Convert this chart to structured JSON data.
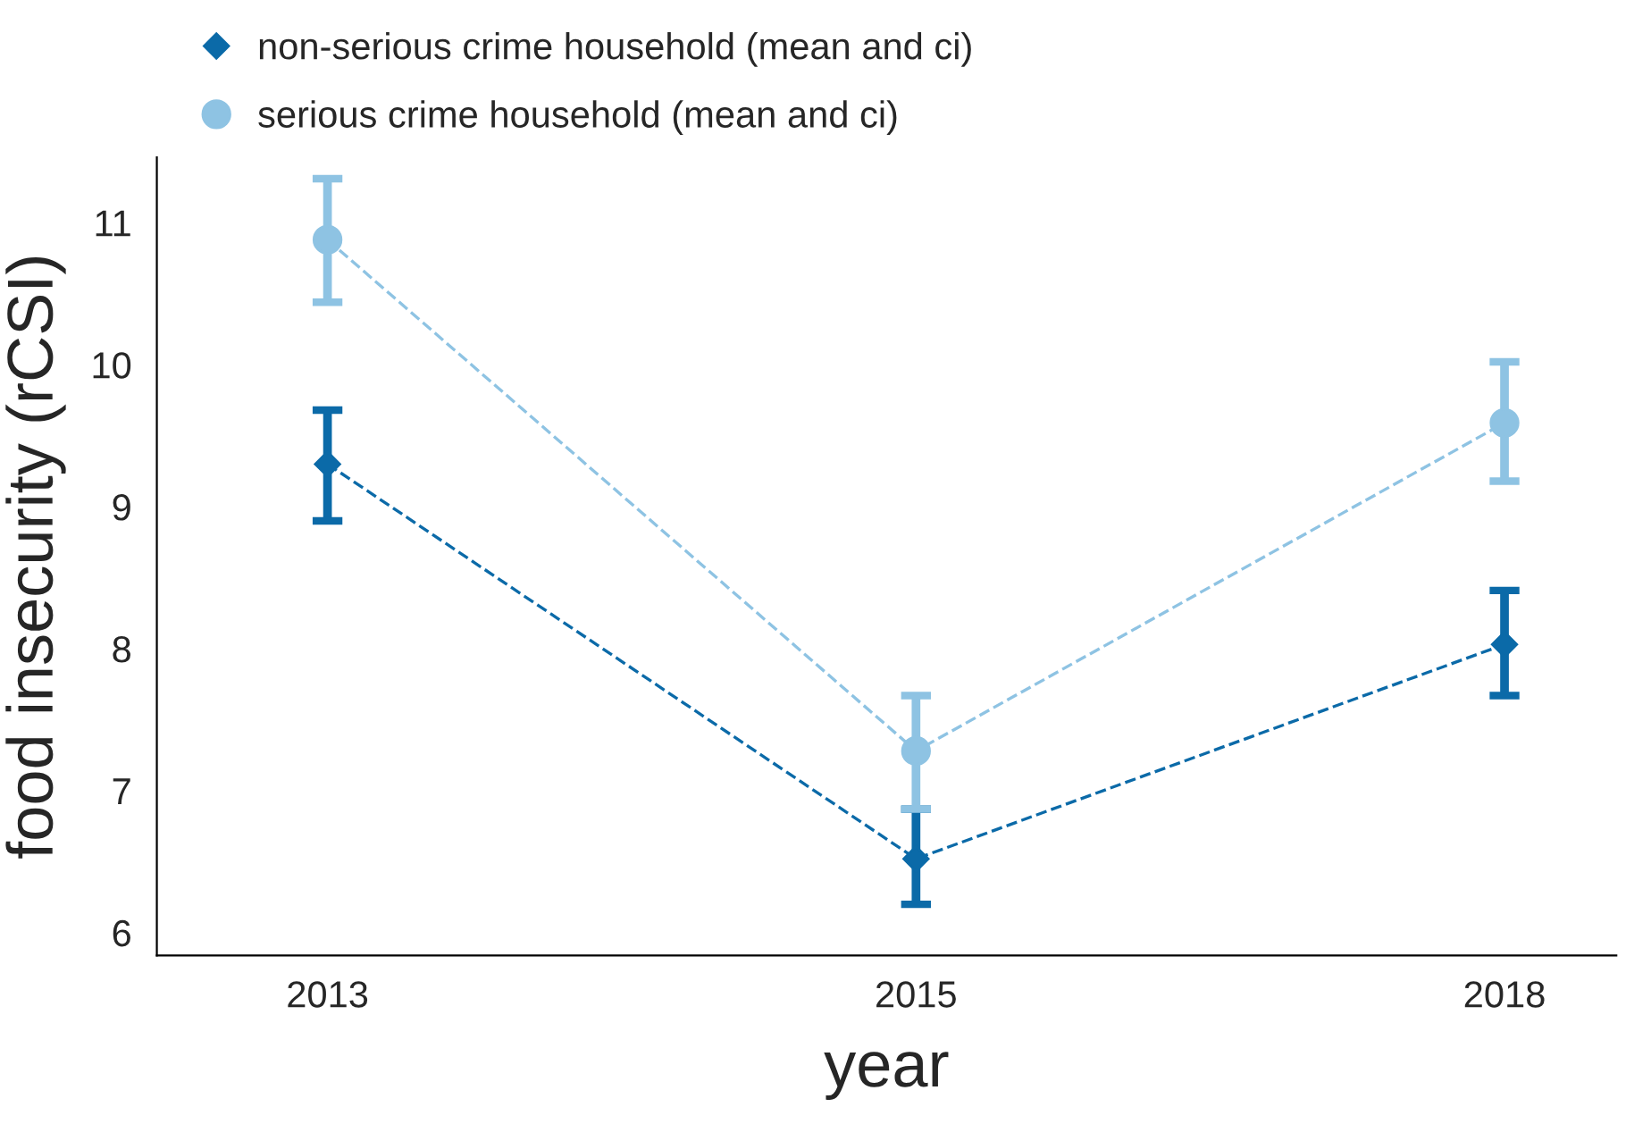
{
  "chart_data": {
    "type": "line",
    "xlabel": "year",
    "ylabel": "food insecurity (rCSI)",
    "categories": [
      "2013",
      "2015",
      "2018"
    ],
    "series": [
      {
        "name": "non-serious crime household (mean and ci)",
        "color": "#0b6aa8",
        "marker": "diamond",
        "values": [
          9.3,
          6.52,
          8.03
        ],
        "errors": [
          [
            8.9,
            9.68
          ],
          [
            6.2,
            6.87
          ],
          [
            7.67,
            8.41
          ]
        ]
      },
      {
        "name": "serious crime household (mean and ci)",
        "color": "#8ec3e3",
        "marker": "circle",
        "values": [
          10.88,
          7.28,
          9.59
        ],
        "errors": [
          [
            10.44,
            11.31
          ],
          [
            6.87,
            7.67
          ],
          [
            9.18,
            10.02
          ]
        ]
      }
    ],
    "ylim": [
      5.84,
      11.46
    ],
    "yticks": [
      6,
      7,
      8,
      9,
      10,
      11
    ],
    "line_style": "dashed",
    "grid": false,
    "legend": "top left"
  }
}
